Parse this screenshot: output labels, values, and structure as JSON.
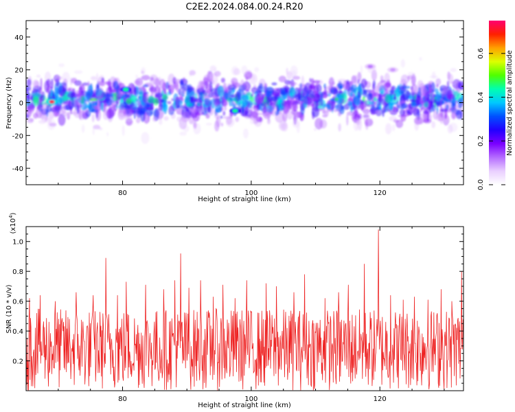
{
  "title": "C2E2.2024.084.00.24.R20",
  "chart_data": [
    {
      "type": "heatmap",
      "xlabel": "Height of straight line (km)",
      "ylabel": "Frequency (Hz)",
      "xlim": [
        65,
        133
      ],
      "ylim": [
        -50,
        50
      ],
      "x_ticks": [
        "80",
        "100",
        "120"
      ],
      "y_ticks": [
        "-40",
        "-20",
        "0",
        "20",
        "40"
      ],
      "colorbar": {
        "label": "Normalized spectral amplitude",
        "range": [
          0,
          0.75
        ],
        "ticks": [
          "0.0",
          "0.2",
          "0.4",
          "0.6"
        ],
        "colors": [
          "#ffffff",
          "#e9cfff",
          "#b56cff",
          "#7a00ff",
          "#2200ff",
          "#0050ff",
          "#00c8ff",
          "#00ffb0",
          "#50ff00",
          "#dcff00",
          "#ffa000",
          "#ff2000",
          "#ff0070"
        ]
      },
      "features": [
        {
          "x": 69,
          "y": 0.5,
          "amp": 0.72
        },
        {
          "x": 80.5,
          "y": 8,
          "amp": 0.45
        },
        {
          "x": 97.5,
          "y": -5,
          "amp": 0.45
        },
        {
          "x": 118.5,
          "y": 22,
          "amp": 0.12
        },
        {
          "x": 122,
          "y": 20,
          "amp": 0.1
        }
      ]
    },
    {
      "type": "line",
      "xlabel": "Height of straight line (km)",
      "ylabel": "SNR (10 * v/v)",
      "scale_label": "(x10",
      "scale_exp": "4",
      "scale_close": ")",
      "xlim": [
        65,
        133
      ],
      "ylim": [
        0,
        1.1
      ],
      "x_ticks": [
        "80",
        "100",
        "120"
      ],
      "y_ticks": [
        "0.2",
        "0.4",
        "0.6",
        "0.8",
        "1.0"
      ],
      "line_color": "#ee2222",
      "baseline_range": [
        0.0,
        0.55
      ],
      "peaks": [
        {
          "x": 65.5,
          "y": 0.62
        },
        {
          "x": 67.2,
          "y": 0.64
        },
        {
          "x": 69.5,
          "y": 0.6
        },
        {
          "x": 72.8,
          "y": 0.66
        },
        {
          "x": 75.4,
          "y": 0.64
        },
        {
          "x": 77.4,
          "y": 0.89
        },
        {
          "x": 79.2,
          "y": 0.64
        },
        {
          "x": 80.6,
          "y": 0.73
        },
        {
          "x": 83.6,
          "y": 0.71
        },
        {
          "x": 86.4,
          "y": 0.68
        },
        {
          "x": 88.1,
          "y": 0.74
        },
        {
          "x": 89.0,
          "y": 0.92
        },
        {
          "x": 90.3,
          "y": 0.69
        },
        {
          "x": 92.1,
          "y": 0.74
        },
        {
          "x": 94.1,
          "y": 0.63
        },
        {
          "x": 95.6,
          "y": 0.71
        },
        {
          "x": 97.5,
          "y": 0.62
        },
        {
          "x": 99.3,
          "y": 0.74
        },
        {
          "x": 102.3,
          "y": 0.72
        },
        {
          "x": 103.9,
          "y": 0.7
        },
        {
          "x": 106.6,
          "y": 0.66
        },
        {
          "x": 108.3,
          "y": 0.78
        },
        {
          "x": 111.5,
          "y": 0.62
        },
        {
          "x": 113.6,
          "y": 0.66
        },
        {
          "x": 115.1,
          "y": 0.71
        },
        {
          "x": 117.6,
          "y": 0.85
        },
        {
          "x": 119.8,
          "y": 1.08
        },
        {
          "x": 121.7,
          "y": 0.64
        },
        {
          "x": 123.6,
          "y": 0.61
        },
        {
          "x": 125.4,
          "y": 0.63
        },
        {
          "x": 127.5,
          "y": 0.61
        },
        {
          "x": 129.5,
          "y": 0.68
        },
        {
          "x": 131.2,
          "y": 0.6
        },
        {
          "x": 132.7,
          "y": 0.8
        }
      ]
    }
  ]
}
